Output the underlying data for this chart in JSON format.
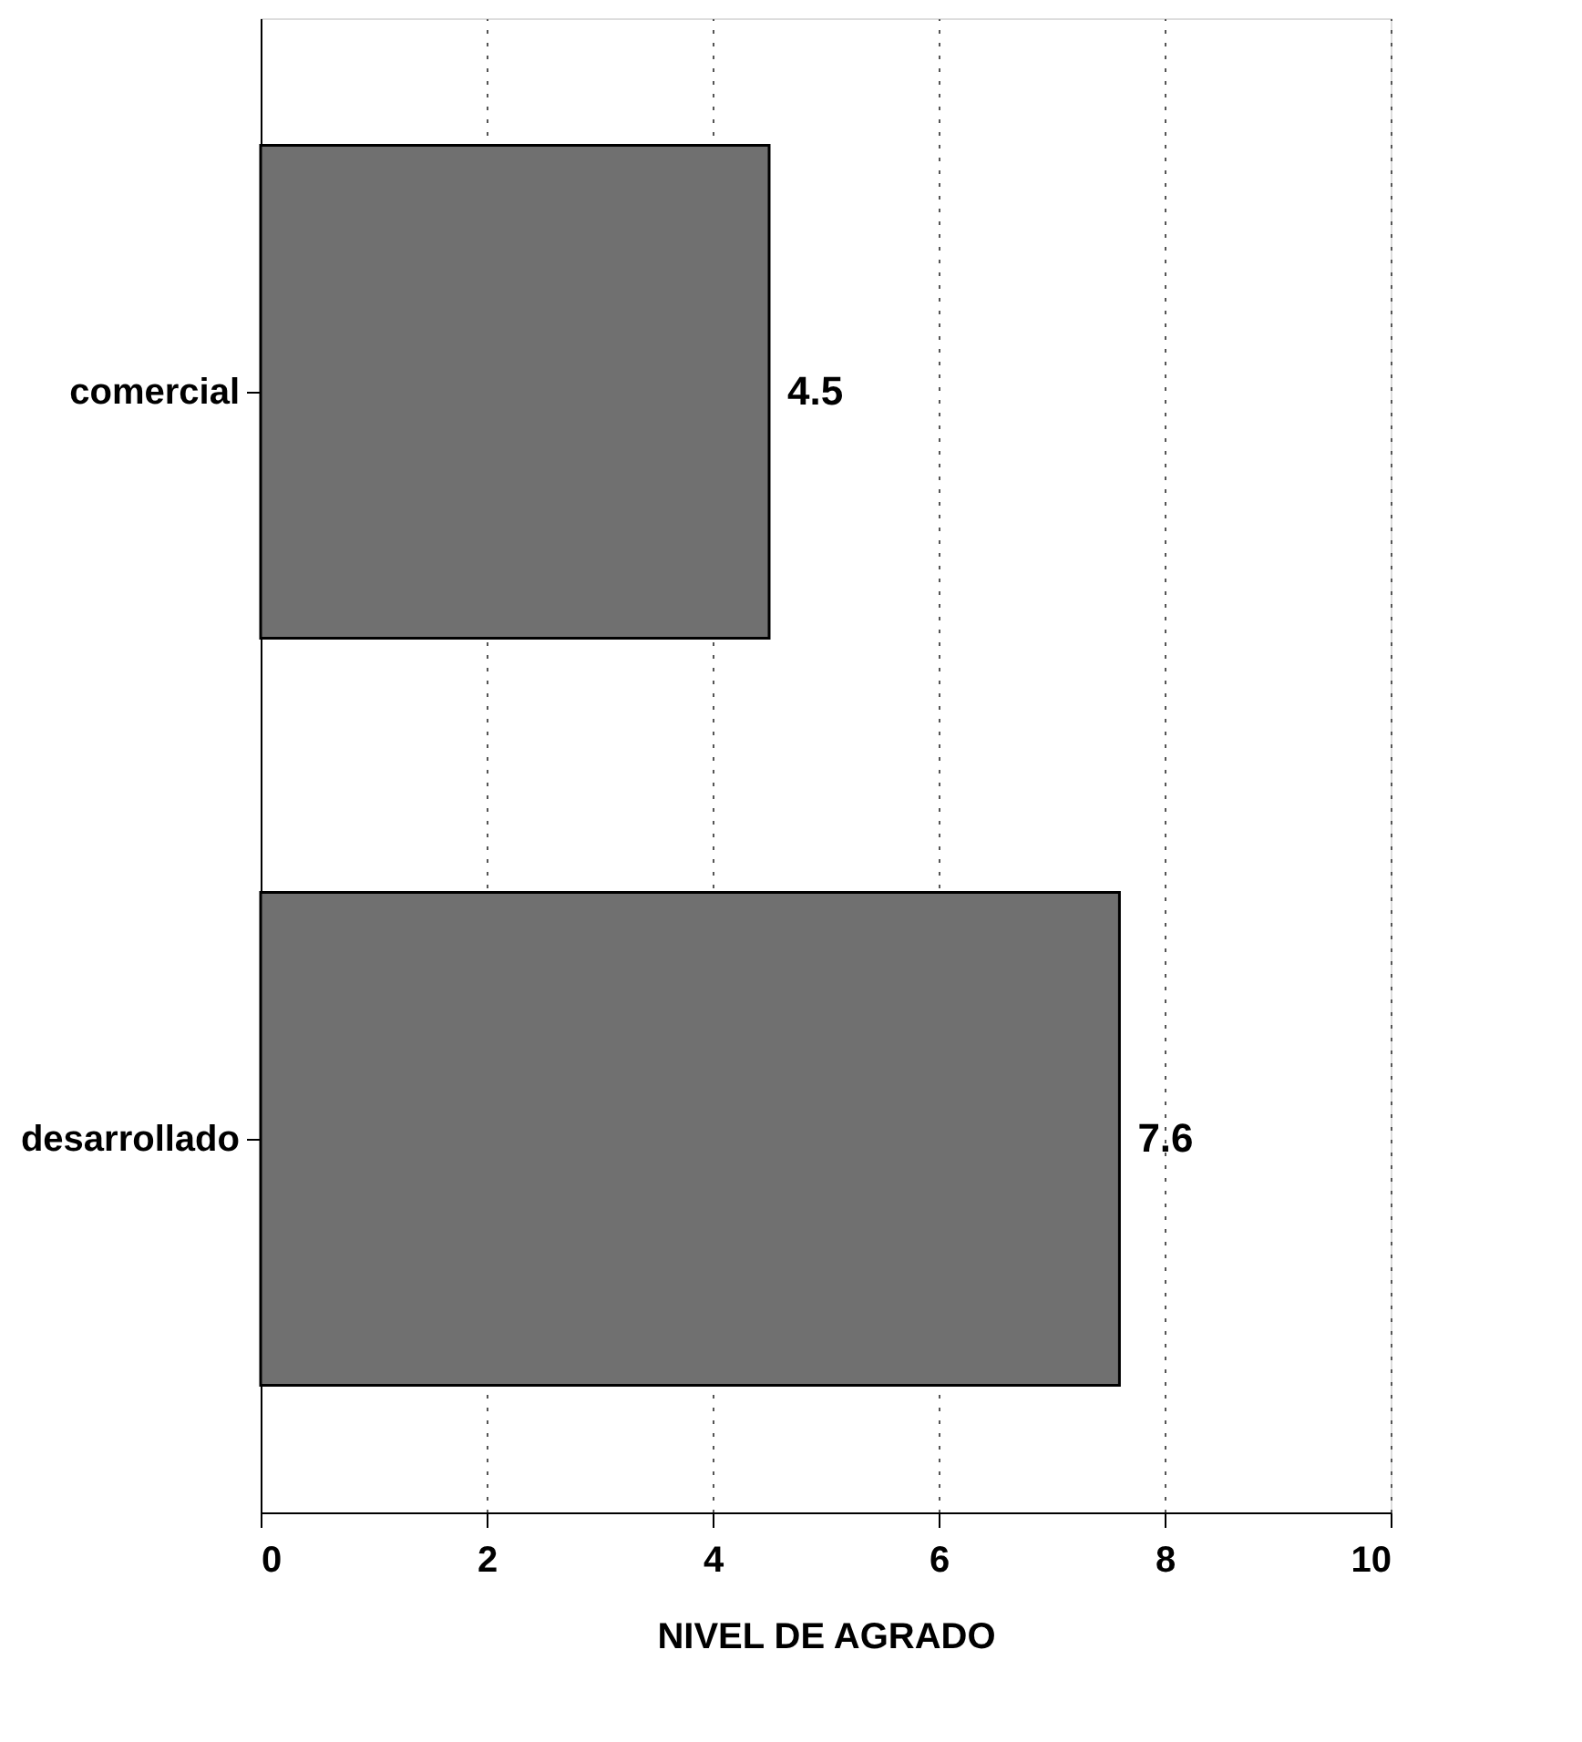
{
  "chart_data": {
    "type": "bar",
    "orientation": "horizontal",
    "xlabel": "NIVEL DE AGRADO",
    "categories": [
      "comercial",
      "desarrollado"
    ],
    "values": [
      4.5,
      7.6
    ],
    "color": "#707070",
    "xlim": [
      0,
      10
    ],
    "xticks": [
      0,
      2,
      4,
      6,
      8,
      10
    ],
    "grid": "x",
    "data_labels": true
  }
}
